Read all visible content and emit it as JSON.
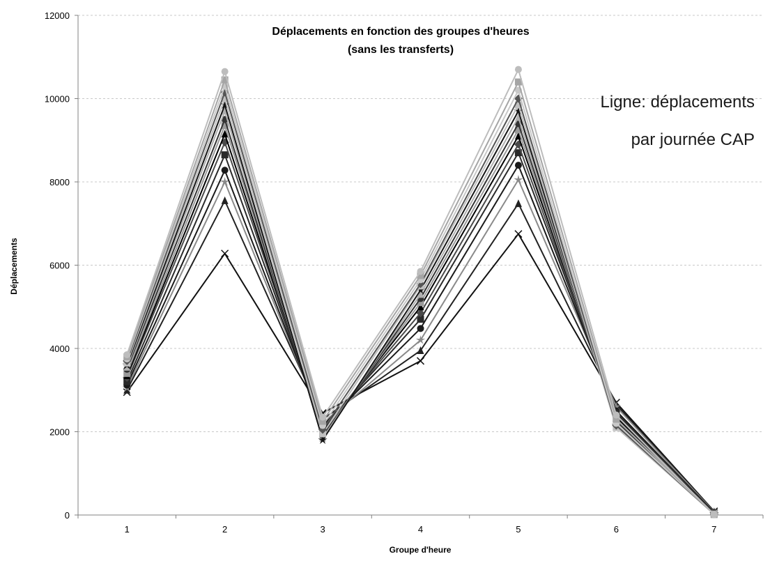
{
  "chart_data": {
    "type": "line",
    "title": "Déplacements en fonction des groupes d'heures",
    "subtitle": "(sans les transferts)",
    "annotation_lines": [
      "Ligne: déplacements",
      "par journée CAP"
    ],
    "xlabel": "Groupe d'heure",
    "ylabel": "Déplacements",
    "categories": [
      "1",
      "2",
      "3",
      "4",
      "5",
      "6",
      "7"
    ],
    "ylim": [
      0,
      12000
    ],
    "yticks": [
      0,
      2000,
      4000,
      6000,
      8000,
      10000,
      12000
    ],
    "grid": true,
    "legend": "none",
    "series": [
      {
        "values": [
          2950,
          6280,
          2450,
          3700,
          6750,
          2700,
          90
        ],
        "color": "#111111",
        "marker": "x"
      },
      {
        "values": [
          3000,
          7550,
          2300,
          3950,
          7480,
          2650,
          80
        ],
        "color": "#222222",
        "marker": "triangle"
      },
      {
        "values": [
          3050,
          8000,
          2200,
          4200,
          8050,
          2600,
          70
        ],
        "color": "#8a8a8a",
        "marker": "star"
      },
      {
        "values": [
          3120,
          8280,
          2150,
          4480,
          8400,
          2500,
          60
        ],
        "color": "#1a1a1a",
        "marker": "circle"
      },
      {
        "values": [
          3200,
          8650,
          2100,
          4700,
          8700,
          2450,
          60
        ],
        "color": "#2a2a2a",
        "marker": "square"
      },
      {
        "values": [
          3300,
          8950,
          2050,
          4850,
          8900,
          2400,
          50
        ],
        "color": "#4a4a4a",
        "marker": "diamond"
      },
      {
        "values": [
          3350,
          9150,
          2000,
          5000,
          9100,
          2350,
          50
        ],
        "color": "#000000",
        "marker": "triangle"
      },
      {
        "values": [
          3400,
          9350,
          1950,
          5100,
          9250,
          2300,
          40
        ],
        "color": "#9a9a9a",
        "marker": "square"
      },
      {
        "values": [
          3500,
          9500,
          1900,
          5200,
          9400,
          2250,
          40
        ],
        "color": "#333333",
        "marker": "circle"
      },
      {
        "values": [
          3550,
          9700,
          1850,
          5300,
          9550,
          2200,
          30
        ],
        "color": "#b0b0b0",
        "marker": "triangle"
      },
      {
        "values": [
          3600,
          9850,
          1800,
          5400,
          9700,
          2150,
          30
        ],
        "color": "#151515",
        "marker": "star"
      },
      {
        "values": [
          3650,
          10000,
          1950,
          5500,
          9850,
          2100,
          20
        ],
        "color": "#c0c0c0",
        "marker": "square"
      },
      {
        "values": [
          3700,
          10150,
          2050,
          5550,
          10000,
          2150,
          20
        ],
        "color": "#555555",
        "marker": "diamond"
      },
      {
        "values": [
          3750,
          10300,
          2150,
          5650,
          10200,
          2200,
          20
        ],
        "color": "#c8c8c8",
        "marker": "circle"
      },
      {
        "values": [
          3800,
          10450,
          2250,
          5750,
          10400,
          2300,
          10
        ],
        "color": "#a5a5a5",
        "marker": "square"
      },
      {
        "values": [
          3850,
          10650,
          2350,
          5850,
          10700,
          2400,
          10
        ],
        "color": "#bdbdbd",
        "marker": "circle"
      }
    ]
  }
}
